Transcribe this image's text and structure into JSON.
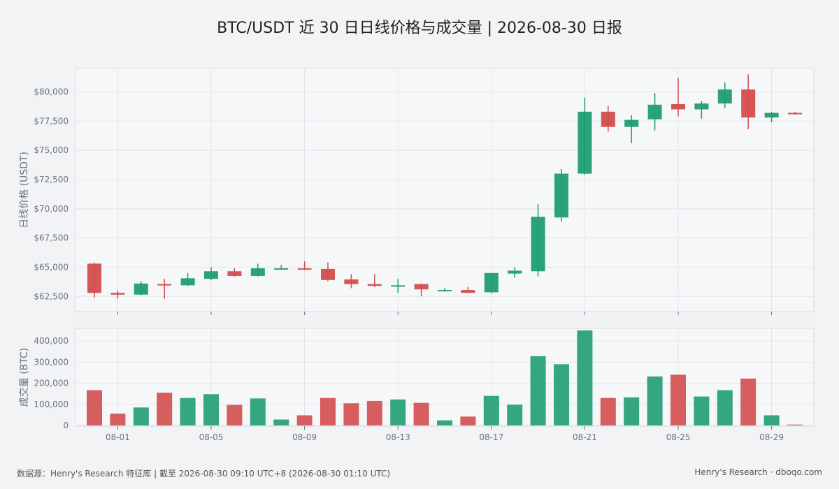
{
  "colors": {
    "up": "#1f9d73",
    "down": "#d44c4c",
    "background": "#f2f3f5",
    "plot_bg": "#f6f7f9",
    "grid": "#e2e5e9"
  },
  "footer": {
    "source": "数据源：Henry's Research 特征库 | 截至 2026-08-30 09:10 UTC+8 (2026-08-30 01:10 UTC)",
    "brand": "Henry's Research · dboqo.com"
  },
  "chart_data": [
    {
      "type": "candlestick",
      "title": "BTC/USDT 近 30 日日线价格与成交量 | 2026-08-30 日报",
      "ylabel": "日线价格 (USDT)",
      "ylim": [
        61200,
        82000
      ],
      "yticks": [
        62500,
        65000,
        67500,
        70000,
        72500,
        75000,
        77500,
        80000
      ],
      "ytick_labels": [
        "$62,500",
        "$65,000",
        "$67,500",
        "$70,000",
        "$72,500",
        "$75,000",
        "$77,500",
        "$80,000"
      ],
      "xtick_labels": [
        "08-01",
        "08-05",
        "08-09",
        "08-13",
        "08-17",
        "08-21",
        "08-25",
        "08-29"
      ],
      "xtick_index": [
        1,
        5,
        9,
        13,
        17,
        21,
        25,
        29
      ],
      "grid": true,
      "candles": [
        {
          "date": "07-31",
          "open": 65300,
          "high": 65400,
          "low": 62400,
          "close": 62800
        },
        {
          "date": "08-01",
          "open": 62800,
          "high": 63000,
          "low": 62300,
          "close": 62650
        },
        {
          "date": "08-02",
          "open": 62650,
          "high": 63800,
          "low": 62600,
          "close": 63600
        },
        {
          "date": "08-03",
          "open": 63550,
          "high": 64000,
          "low": 62300,
          "close": 63450
        },
        {
          "date": "08-04",
          "open": 63450,
          "high": 64500,
          "low": 63400,
          "close": 64050
        },
        {
          "date": "08-05",
          "open": 64000,
          "high": 65000,
          "low": 63900,
          "close": 64650
        },
        {
          "date": "08-06",
          "open": 64650,
          "high": 64900,
          "low": 64200,
          "close": 64250
        },
        {
          "date": "08-07",
          "open": 64250,
          "high": 65300,
          "low": 64200,
          "close": 64900
        },
        {
          "date": "08-08",
          "open": 64850,
          "high": 65200,
          "low": 64800,
          "close": 64900
        },
        {
          "date": "08-09",
          "open": 64900,
          "high": 65500,
          "low": 64750,
          "close": 64800
        },
        {
          "date": "08-10",
          "open": 64850,
          "high": 65400,
          "low": 63800,
          "close": 63900
        },
        {
          "date": "08-11",
          "open": 63950,
          "high": 64400,
          "low": 63200,
          "close": 63550
        },
        {
          "date": "08-12",
          "open": 63550,
          "high": 64400,
          "low": 63300,
          "close": 63400
        },
        {
          "date": "08-13",
          "open": 63400,
          "high": 64000,
          "low": 62800,
          "close": 63450
        },
        {
          "date": "08-14",
          "open": 63550,
          "high": 63600,
          "low": 62500,
          "close": 63100
        },
        {
          "date": "08-15",
          "open": 62950,
          "high": 63200,
          "low": 62900,
          "close": 63050
        },
        {
          "date": "08-16",
          "open": 63050,
          "high": 63300,
          "low": 62800,
          "close": 62800
        },
        {
          "date": "08-17",
          "open": 62850,
          "high": 64500,
          "low": 62750,
          "close": 64500
        },
        {
          "date": "08-18",
          "open": 64450,
          "high": 65000,
          "low": 64100,
          "close": 64700
        },
        {
          "date": "08-19",
          "open": 64650,
          "high": 70400,
          "low": 64200,
          "close": 69300
        },
        {
          "date": "08-20",
          "open": 69250,
          "high": 73400,
          "low": 68900,
          "close": 73000
        },
        {
          "date": "08-21",
          "open": 73000,
          "high": 79500,
          "low": 72900,
          "close": 78300
        },
        {
          "date": "08-22",
          "open": 78300,
          "high": 78800,
          "low": 76600,
          "close": 77000
        },
        {
          "date": "08-23",
          "open": 77000,
          "high": 78000,
          "low": 75600,
          "close": 77600
        },
        {
          "date": "08-24",
          "open": 77650,
          "high": 79900,
          "low": 76700,
          "close": 78900
        },
        {
          "date": "08-25",
          "open": 78950,
          "high": 81200,
          "low": 77900,
          "close": 78500
        },
        {
          "date": "08-26",
          "open": 78500,
          "high": 79200,
          "low": 77700,
          "close": 79000
        },
        {
          "date": "08-27",
          "open": 79000,
          "high": 80800,
          "low": 78600,
          "close": 80200
        },
        {
          "date": "08-28",
          "open": 80200,
          "high": 81500,
          "low": 76800,
          "close": 77800
        },
        {
          "date": "08-29",
          "open": 77800,
          "high": 78300,
          "low": 77400,
          "close": 78200
        },
        {
          "date": "08-30",
          "open": 78200,
          "high": 78300,
          "low": 78050,
          "close": 78100
        }
      ]
    },
    {
      "type": "bar",
      "ylabel": "成交量 (BTC)",
      "ylim": [
        0,
        460000
      ],
      "yticks": [
        0,
        100000,
        200000,
        300000,
        400000
      ],
      "ytick_labels": [
        "0",
        "100,000",
        "200,000",
        "300,000",
        "400,000"
      ],
      "xtick_labels": [
        "08-01",
        "08-05",
        "08-09",
        "08-13",
        "08-17",
        "08-21",
        "08-25",
        "08-29"
      ],
      "xtick_index": [
        1,
        5,
        9,
        13,
        17,
        21,
        25,
        29
      ],
      "grid": true,
      "values": [
        167000,
        56000,
        85000,
        155000,
        130000,
        148000,
        97000,
        128000,
        28000,
        48000,
        130000,
        105000,
        116000,
        123000,
        107000,
        24000,
        42000,
        140000,
        98000,
        328000,
        290000,
        450000,
        130000,
        133000,
        232000,
        240000,
        137000,
        167000,
        222000,
        48000,
        4000
      ]
    }
  ]
}
